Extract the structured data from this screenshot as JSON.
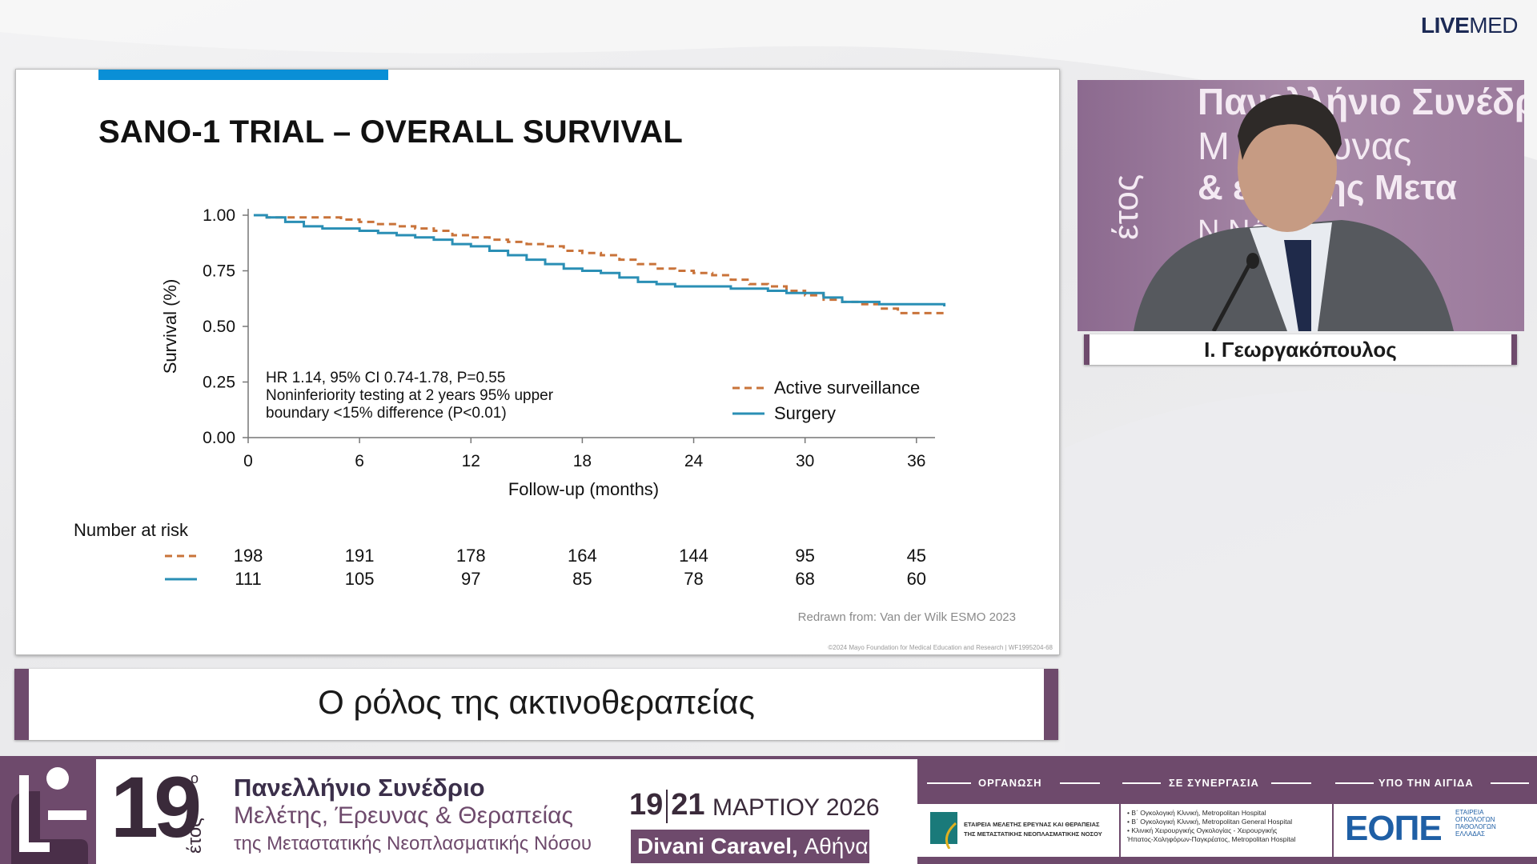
{
  "brand": {
    "bold": "LIVE",
    "regular": "MED"
  },
  "slide": {
    "title": "SANO-1 TRIAL – OVERALL SURVIVAL",
    "credit": "Redrawn from: Van der Wilk ESMO 2023",
    "copyright": "©2024 Mayo Foundation for Medical Education and Research  |  WF1995204-68"
  },
  "chart_data": {
    "type": "line",
    "title": "SANO-1 TRIAL – OVERALL SURVIVAL",
    "xlabel": "Follow-up (months)",
    "ylabel": "Survival (%)",
    "xlim": [
      0,
      37
    ],
    "ylim": [
      0,
      1
    ],
    "xticks": [
      0,
      6,
      12,
      18,
      24,
      30,
      36
    ],
    "yticks": [
      "0.00",
      "0.25",
      "0.50",
      "0.75",
      "1.00"
    ],
    "annotation": [
      "HR 1.14, 95% CI 0.74-1.78, P=0.55",
      "Noninferiority testing at 2 years 95% upper",
      "boundary  <15% difference (P<0.01)"
    ],
    "legend_position": "bottom-right",
    "series": [
      {
        "name": "Active surveillance",
        "color": "#c9733a",
        "style": "dashed",
        "x": [
          0.3,
          1,
          2,
          3,
          4,
          5,
          6,
          7,
          8,
          9,
          10,
          11,
          12,
          13,
          14,
          15,
          16,
          17,
          18,
          19,
          20,
          21,
          22,
          23,
          24,
          25,
          26,
          27,
          28,
          29,
          30,
          31,
          32,
          33,
          34,
          35,
          36,
          37.5
        ],
        "y": [
          1.0,
          0.99,
          0.99,
          0.99,
          0.99,
          0.98,
          0.97,
          0.96,
          0.95,
          0.94,
          0.93,
          0.91,
          0.9,
          0.89,
          0.88,
          0.87,
          0.86,
          0.84,
          0.83,
          0.82,
          0.8,
          0.78,
          0.76,
          0.75,
          0.74,
          0.73,
          0.71,
          0.69,
          0.68,
          0.66,
          0.64,
          0.62,
          0.61,
          0.6,
          0.58,
          0.56,
          0.56,
          0.56
        ]
      },
      {
        "name": "Surgery",
        "color": "#2a8fb5",
        "style": "solid",
        "x": [
          0.3,
          1,
          2,
          3,
          4,
          5,
          6,
          7,
          8,
          9,
          10,
          11,
          12,
          13,
          14,
          15,
          16,
          17,
          18,
          19,
          20,
          21,
          22,
          23,
          24,
          25,
          26,
          27,
          28,
          29,
          30,
          31,
          32,
          33,
          34,
          35,
          36,
          37.5
        ],
        "y": [
          1.0,
          0.99,
          0.97,
          0.95,
          0.94,
          0.94,
          0.93,
          0.92,
          0.91,
          0.9,
          0.89,
          0.87,
          0.86,
          0.84,
          0.82,
          0.8,
          0.78,
          0.76,
          0.75,
          0.74,
          0.72,
          0.7,
          0.69,
          0.68,
          0.68,
          0.68,
          0.67,
          0.67,
          0.66,
          0.65,
          0.65,
          0.63,
          0.61,
          0.61,
          0.6,
          0.6,
          0.6,
          0.59
        ]
      }
    ],
    "number_at_risk": {
      "label": "Number at risk",
      "timepoints": [
        0,
        6,
        12,
        18,
        24,
        30,
        36
      ],
      "active_surveillance": [
        198,
        191,
        178,
        164,
        144,
        95,
        45
      ],
      "surgery": [
        111,
        105,
        97,
        85,
        78,
        68,
        60
      ]
    }
  },
  "subtitle": "Ο ρόλος της ακτινοθεραπείας",
  "camera": {
    "speaker_name": "Ι. Γεωργακόπουλος",
    "backdrop_lines": [
      "Πανελλήνιο Συνέδρι",
      "Μ   , Έρευνας",
      "&    είας της Μετα",
      "N         Νόσου"
    ],
    "backdrop_side": "έτος"
  },
  "banner": {
    "edition_number": "19",
    "edition_suffix": "ο",
    "edition_word": "έτος",
    "line1": "Πανελλήνιο Συνέδριο",
    "line2": "Μελέτης, Έρευνας & Θεραπείας",
    "line3": "της Μεταστατικής Νεοπλασματικής Νόσου",
    "day_start": "19",
    "day_end": "21",
    "month_year": "ΜΑΡΤΙΟΥ 2026",
    "venue_bold": "Divani Caravel,",
    "venue_city": "Αθήνα",
    "organization_label": "ΟΡΓΑΝΩΣΗ",
    "collaboration_label": "ΣΕ ΣΥΝΕΡΓΑΣΙΑ",
    "auspices_label": "ΥΠΟ ΤΗΝ ΑΙΓΙΔΑ",
    "organizer_line1": "ΕΤΑΙΡΕΙΑ ΜΕΛΕΤΗΣ ΕΡΕΥΝΑΣ ΚΑΙ ΘΕΡΑΠΕΙΑΣ",
    "organizer_line2": "ΤΗΣ ΜΕΤΑΣΤΑΤΙΚΗΣ ΝΕΟΠΛΑΣΜΑΤΙΚΗΣ ΝΟΣΟΥ",
    "collaborators": [
      "• Β΄ Ογκολογική Κλινική, Metropolitan Hospital",
      "• Β΄ Ογκολογική Κλινική, Metropolitan General Hospital",
      "• Κλινική Χειρουργικής Ογκολογίας - Χειρουργικής",
      "  Ήπατος-Χοληφόρων-Παγκρέατος, Metropolitan Hospital"
    ],
    "auspices_logo": "ΕΟΠΕ",
    "auspices_text": [
      "ΕΤΑΙΡΕΙΑ",
      "ΟΓΚΟΛΟΓΩΝ",
      "ΠΑΘΟΛΟΓΩΝ",
      "ΕΛΛΑΔΑΣ"
    ]
  },
  "colors": {
    "accent": "#6e4a6c",
    "slide_accent": "#0a8fd6"
  }
}
